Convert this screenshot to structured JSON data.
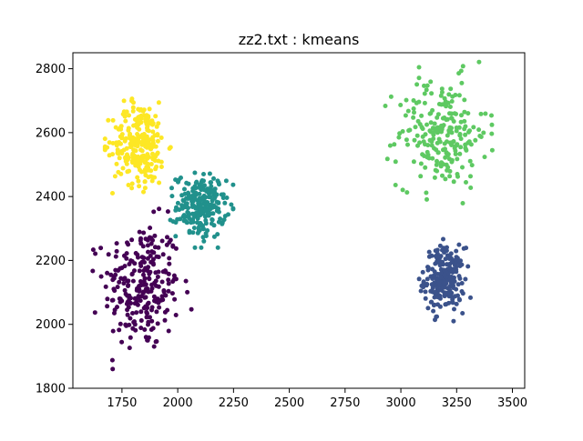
{
  "chart_data": {
    "type": "scatter",
    "title": "zz2.txt : kmeans",
    "xlabel": "",
    "ylabel": "",
    "xlim": [
      1530,
      3555
    ],
    "ylim": [
      1800,
      2850
    ],
    "x_ticks": [
      1750,
      2000,
      2250,
      2500,
      2750,
      3000,
      3250,
      3500
    ],
    "y_ticks": [
      1800,
      2000,
      2200,
      2400,
      2600,
      2800
    ],
    "x_tick_labels": [
      "1750",
      "2000",
      "2250",
      "2500",
      "2750",
      "3000",
      "3250",
      "3500"
    ],
    "y_tick_labels": [
      "1800",
      "2000",
      "2200",
      "2400",
      "2600",
      "2800"
    ],
    "grid": false,
    "legend": "none",
    "clusters": [
      {
        "color": "#440154",
        "center": [
          1840,
          2120
        ],
        "spread": [
          85,
          100
        ],
        "count": 260
      },
      {
        "color": "#3b528b",
        "center": [
          3195,
          2140
        ],
        "spread": [
          45,
          50
        ],
        "count": 230
      },
      {
        "color": "#21918c",
        "center": [
          2105,
          2370
        ],
        "spread": [
          55,
          50
        ],
        "count": 230
      },
      {
        "color": "#5ec962",
        "center": [
          3185,
          2600
        ],
        "spread": [
          100,
          85
        ],
        "count": 230
      },
      {
        "color": "#fde725",
        "center": [
          1830,
          2565
        ],
        "spread": [
          60,
          65
        ],
        "count": 260
      }
    ]
  }
}
